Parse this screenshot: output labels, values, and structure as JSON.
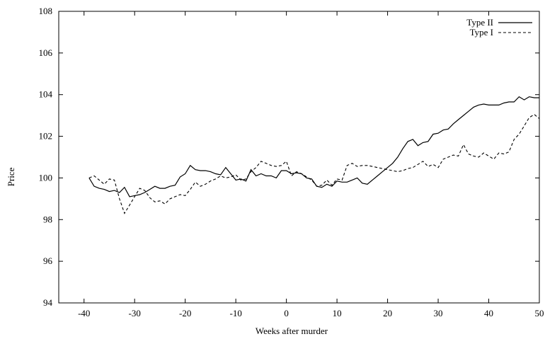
{
  "chart_data": {
    "type": "line",
    "title": "",
    "xlabel": "Weeks after murder",
    "ylabel": "Price",
    "xlim": [
      -45,
      50
    ],
    "ylim": [
      94,
      108
    ],
    "xticks": [
      -40,
      -30,
      -20,
      -10,
      0,
      10,
      20,
      30,
      40,
      50
    ],
    "yticks": [
      94,
      96,
      98,
      100,
      102,
      104,
      106,
      108
    ],
    "grid": false,
    "legend_position": "top-right",
    "series": [
      {
        "name": "Type II",
        "style": "solid",
        "x": [
          -39,
          -38,
          -37,
          -36,
          -35,
          -34,
          -33,
          -32,
          -31,
          -30,
          -29,
          -28,
          -27,
          -26,
          -25,
          -24,
          -23,
          -22,
          -21,
          -20,
          -19,
          -18,
          -17,
          -16,
          -15,
          -14,
          -13,
          -12,
          -11,
          -10,
          -9,
          -8,
          -7,
          -6,
          -5,
          -4,
          -3,
          -2,
          -1,
          0,
          1,
          2,
          3,
          4,
          5,
          6,
          7,
          8,
          9,
          10,
          11,
          12,
          13,
          14,
          15,
          16,
          17,
          18,
          19,
          20,
          21,
          22,
          23,
          24,
          25,
          26,
          27,
          28,
          29,
          30,
          31,
          32,
          33,
          34,
          35,
          36,
          37,
          38,
          39,
          40,
          41,
          42,
          43,
          44,
          45,
          46,
          47,
          48,
          49,
          50
        ],
        "y": [
          100.0,
          99.6,
          99.5,
          99.45,
          99.35,
          99.4,
          99.3,
          99.55,
          99.1,
          99.15,
          99.2,
          99.3,
          99.45,
          99.6,
          99.5,
          99.5,
          99.6,
          99.65,
          100.05,
          100.2,
          100.6,
          100.4,
          100.35,
          100.35,
          100.3,
          100.2,
          100.15,
          100.5,
          100.2,
          99.9,
          99.95,
          99.85,
          100.4,
          100.1,
          100.2,
          100.1,
          100.1,
          100.0,
          100.35,
          100.35,
          100.2,
          100.25,
          100.2,
          100.0,
          99.95,
          99.6,
          99.55,
          99.7,
          99.6,
          99.85,
          99.8,
          99.8,
          99.9,
          100.0,
          99.75,
          99.7,
          99.9,
          100.1,
          100.3,
          100.5,
          100.7,
          101.0,
          101.4,
          101.75,
          101.85,
          101.55,
          101.7,
          101.75,
          102.1,
          102.15,
          102.3,
          102.35,
          102.6,
          102.8,
          103.0,
          103.2,
          103.4,
          103.5,
          103.55,
          103.5,
          103.5,
          103.5,
          103.6,
          103.65,
          103.65,
          103.9,
          103.75,
          103.9,
          103.85,
          103.85
        ]
      },
      {
        "name": "Type I",
        "style": "dashed",
        "x": [
          -39,
          -38,
          -37,
          -36,
          -35,
          -34,
          -33,
          -32,
          -31,
          -30,
          -29,
          -28,
          -27,
          -26,
          -25,
          -24,
          -23,
          -22,
          -21,
          -20,
          -19,
          -18,
          -17,
          -16,
          -15,
          -14,
          -13,
          -12,
          -11,
          -10,
          -9,
          -8,
          -7,
          -6,
          -5,
          -4,
          -3,
          -2,
          -1,
          0,
          1,
          2,
          3,
          4,
          5,
          6,
          7,
          8,
          9,
          10,
          11,
          12,
          13,
          14,
          15,
          16,
          17,
          18,
          19,
          20,
          21,
          22,
          23,
          24,
          25,
          26,
          27,
          28,
          29,
          30,
          31,
          32,
          33,
          34,
          35,
          36,
          37,
          38,
          39,
          40,
          41,
          42,
          43,
          44,
          45,
          46,
          47,
          48,
          49,
          50
        ],
        "y": [
          100.0,
          100.1,
          99.9,
          99.7,
          99.95,
          99.9,
          99.0,
          98.3,
          98.7,
          99.1,
          99.5,
          99.4,
          99.05,
          98.85,
          98.9,
          98.75,
          99.0,
          99.1,
          99.2,
          99.15,
          99.45,
          99.8,
          99.6,
          99.7,
          99.85,
          99.95,
          100.1,
          100.0,
          100.05,
          100.15,
          99.9,
          99.95,
          100.3,
          100.5,
          100.8,
          100.7,
          100.6,
          100.55,
          100.6,
          100.8,
          100.1,
          100.3,
          100.2,
          100.05,
          99.9,
          99.6,
          99.65,
          99.9,
          99.65,
          99.95,
          99.9,
          100.6,
          100.7,
          100.55,
          100.6,
          100.6,
          100.55,
          100.5,
          100.45,
          100.4,
          100.35,
          100.3,
          100.35,
          100.45,
          100.5,
          100.65,
          100.8,
          100.55,
          100.65,
          100.5,
          100.9,
          101.0,
          101.1,
          101.05,
          101.6,
          101.15,
          101.05,
          101.0,
          101.2,
          101.05,
          100.9,
          101.2,
          101.15,
          101.25,
          101.85,
          102.1,
          102.5,
          102.9,
          103.05,
          102.85
        ]
      }
    ]
  }
}
